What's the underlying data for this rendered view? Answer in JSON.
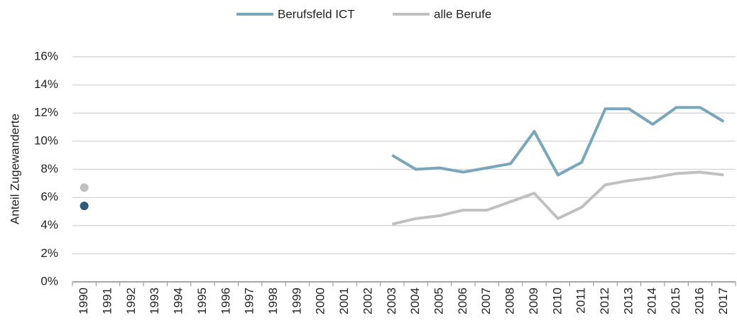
{
  "chart_data": {
    "type": "line",
    "ylabel": "Anteil Zugewanderte",
    "categories": [
      "1990",
      "1991",
      "1992",
      "1993",
      "1994",
      "1995",
      "1996",
      "1997",
      "1998",
      "1999",
      "2000",
      "2001",
      "2002",
      "2003",
      "2004",
      "2005",
      "2006",
      "2007",
      "2008",
      "2009",
      "2010",
      "2011",
      "2012",
      "2013",
      "2014",
      "2015",
      "2016",
      "2017"
    ],
    "series": [
      {
        "name": "Berufsfeld ICT",
        "color": "#7aa6bb",
        "marker_color": "#2e5b78",
        "values": [
          5.4,
          null,
          null,
          null,
          null,
          null,
          null,
          null,
          null,
          null,
          null,
          null,
          null,
          9.0,
          8.0,
          8.1,
          7.8,
          8.1,
          8.4,
          10.7,
          7.6,
          8.5,
          12.3,
          12.3,
          11.2,
          12.4,
          12.4,
          11.4
        ]
      },
      {
        "name": "alle Berufe",
        "color": "#c0c0c0",
        "marker_color": "#c0c0c0",
        "values": [
          6.7,
          null,
          null,
          null,
          null,
          null,
          null,
          null,
          null,
          null,
          null,
          null,
          null,
          4.1,
          4.5,
          4.7,
          5.1,
          5.1,
          5.7,
          6.3,
          4.5,
          5.3,
          6.9,
          7.2,
          7.4,
          7.7,
          7.8,
          7.6
        ]
      }
    ],
    "ylim": [
      0,
      16
    ],
    "yticks": [
      {
        "value": 0,
        "label": "0%"
      },
      {
        "value": 2,
        "label": "2%"
      },
      {
        "value": 4,
        "label": "4%"
      },
      {
        "value": 6,
        "label": "6%"
      },
      {
        "value": 8,
        "label": "8%"
      },
      {
        "value": 10,
        "label": "10%"
      },
      {
        "value": 12,
        "label": "12%"
      },
      {
        "value": 14,
        "label": "14%"
      },
      {
        "value": 16,
        "label": "16%"
      }
    ],
    "grid": true,
    "legend": "top"
  }
}
